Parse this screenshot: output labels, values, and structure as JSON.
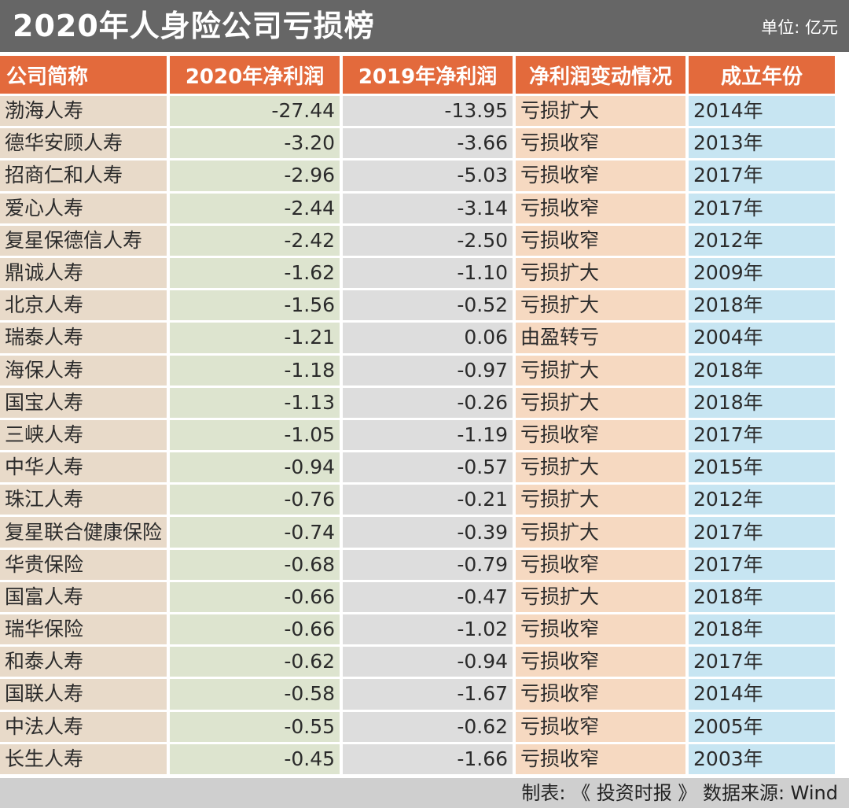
{
  "title": "2020年人身险公司亏损榜",
  "unit": "单位: 亿元",
  "footer": "制表: 《 投资时报 》  数据来源: Wind",
  "colors": {
    "header": "#e36a3c",
    "title_bar": "#666666",
    "col_name": "#e8dac9",
    "col_2020": "#dde4cf",
    "col_2019": "#dddddd",
    "col_change": "#f6d9c1",
    "col_year": "#c7e5f2"
  },
  "chart_data": {
    "type": "table",
    "title": "2020年人身险公司亏损榜",
    "unit": "单位: 亿元",
    "columns": [
      "公司简称",
      "2020年净利润",
      "2019年净利润",
      "净利润变动情况",
      "成立年份"
    ],
    "rows": [
      [
        "渤海人寿",
        "-27.44",
        "-13.95",
        "亏损扩大",
        "2014年"
      ],
      [
        "德华安顾人寿",
        "-3.20",
        "-3.66",
        "亏损收窄",
        "2013年"
      ],
      [
        "招商仁和人寿",
        "-2.96",
        "-5.03",
        "亏损收窄",
        "2017年"
      ],
      [
        "爱心人寿",
        "-2.44",
        "-3.14",
        "亏损收窄",
        "2017年"
      ],
      [
        "复星保德信人寿",
        "-2.42",
        "-2.50",
        "亏损收窄",
        "2012年"
      ],
      [
        "鼎诚人寿",
        "-1.62",
        "-1.10",
        "亏损扩大",
        "2009年"
      ],
      [
        "北京人寿",
        "-1.56",
        "-0.52",
        "亏损扩大",
        "2018年"
      ],
      [
        "瑞泰人寿",
        "-1.21",
        "0.06",
        "由盈转亏",
        "2004年"
      ],
      [
        "海保人寿",
        "-1.18",
        "-0.97",
        "亏损扩大",
        "2018年"
      ],
      [
        "国宝人寿",
        "-1.13",
        "-0.26",
        "亏损扩大",
        "2018年"
      ],
      [
        "三峡人寿",
        "-1.05",
        "-1.19",
        "亏损收窄",
        "2017年"
      ],
      [
        "中华人寿",
        "-0.94",
        "-0.57",
        "亏损扩大",
        "2015年"
      ],
      [
        "珠江人寿",
        "-0.76",
        "-0.21",
        "亏损扩大",
        "2012年"
      ],
      [
        "复星联合健康保险",
        "-0.74",
        "-0.39",
        "亏损扩大",
        "2017年"
      ],
      [
        "华贵保险",
        "-0.68",
        "-0.79",
        "亏损收窄",
        "2017年"
      ],
      [
        "国富人寿",
        "-0.66",
        "-0.47",
        "亏损扩大",
        "2018年"
      ],
      [
        "瑞华保险",
        "-0.66",
        "-1.02",
        "亏损收窄",
        "2018年"
      ],
      [
        "和泰人寿",
        "-0.62",
        "-0.94",
        "亏损收窄",
        "2017年"
      ],
      [
        "国联人寿",
        "-0.58",
        "-1.67",
        "亏损收窄",
        "2014年"
      ],
      [
        "中法人寿",
        "-0.55",
        "-0.62",
        "亏损收窄",
        "2005年"
      ],
      [
        "长生人寿",
        "-0.45",
        "-1.66",
        "亏损收窄",
        "2003年"
      ]
    ]
  }
}
